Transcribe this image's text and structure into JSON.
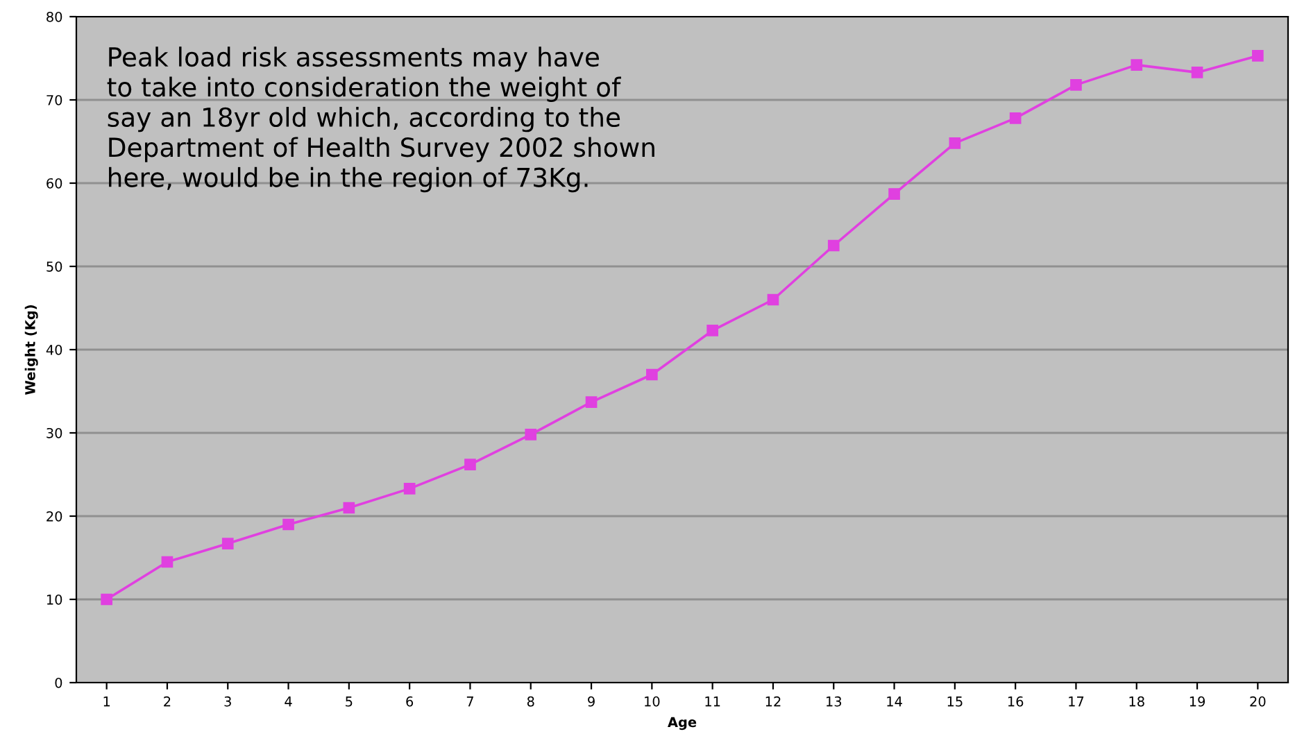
{
  "chart_data": {
    "type": "line",
    "xlabel": "Age",
    "ylabel": "Weight (Kg)",
    "categories": [
      "1",
      "2",
      "3",
      "4",
      "5",
      "6",
      "7",
      "8",
      "9",
      "10",
      "11",
      "12",
      "13",
      "14",
      "15",
      "16",
      "17",
      "18",
      "19",
      "20"
    ],
    "series": [
      {
        "color": "#e040e0",
        "values": [
          10,
          14.5,
          16.7,
          19,
          21,
          23.3,
          26.2,
          29.8,
          33.7,
          37,
          42.3,
          46,
          52.5,
          58.7,
          64.8,
          67.8,
          71.8,
          74.2,
          73.3,
          75.3
        ]
      }
    ],
    "ylim": [
      0,
      80
    ],
    "yticks": [
      0,
      10,
      20,
      30,
      40,
      50,
      60,
      70,
      80
    ],
    "grid": "y",
    "marker": "square",
    "line_style": "solid",
    "annotations": [
      "Peak load risk assessments may have\nto take into consideration the weight of\nsay an 18yr old which, according to the\nDepartment of Health Survey 2002 shown\nhere, would be in the region of 73Kg."
    ]
  }
}
